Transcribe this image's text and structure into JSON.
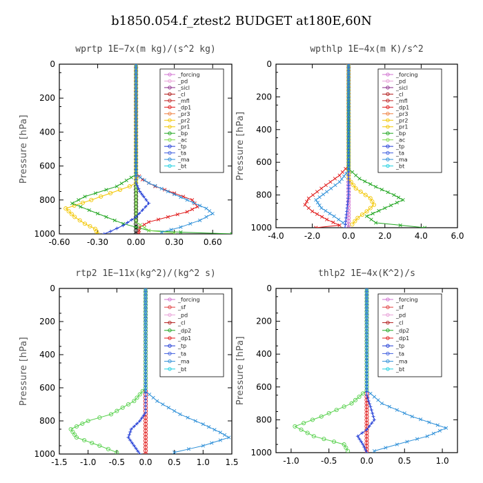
{
  "title": "b1850.054.f_ztest2  BUDGET at180E,60N",
  "chart_data": [
    {
      "type": "line",
      "title": "wprtp   1E−7x(m kg)/(s^2 kg)",
      "ylabel": "Pressure [hPa]",
      "xlim": [
        -0.6,
        0.75
      ],
      "ylim": [
        0,
        1000
      ],
      "y_inverted": true,
      "xticks": [
        "-0.60",
        "-0.30",
        "0.00",
        "0.30",
        "0.60"
      ],
      "xtick_values": [
        -0.6,
        -0.3,
        0.0,
        0.3,
        0.6
      ],
      "yticks": [
        "0",
        "200",
        "400",
        "600",
        "800",
        "1000"
      ],
      "ytick_values": [
        0,
        200,
        400,
        600,
        800,
        1000
      ],
      "legend": [
        "_forcing",
        "_pd",
        "_sicl",
        "_cl",
        "_mfl",
        "_dp1",
        "_pr3",
        "_pr2",
        "_pr1",
        "_bp",
        "_ac",
        "_tp",
        "_ta",
        "_ma",
        "_bt"
      ],
      "series": [
        {
          "name": "_forcing",
          "color": "#000000",
          "marker": "o",
          "points": [
            [
              0,
              0
            ],
            [
              0,
              1000
            ]
          ]
        },
        {
          "name": "_dp1",
          "color": "#e01818",
          "marker": "x",
          "points": [
            [
              0,
              0
            ],
            [
              0,
              640
            ],
            [
              0.05,
              680
            ],
            [
              0.15,
              720
            ],
            [
              0.3,
              760
            ],
            [
              0.44,
              800
            ],
            [
              0.48,
              840
            ],
            [
              0.4,
              870
            ],
            [
              0.25,
              900
            ],
            [
              0.1,
              930
            ],
            [
              0.03,
              960
            ],
            [
              0.02,
              1000
            ]
          ]
        },
        {
          "name": "_pr1",
          "color": "#f2c600",
          "marker": "o",
          "points": [
            [
              0,
              0
            ],
            [
              0,
              700
            ],
            [
              -0.05,
              720
            ],
            [
              -0.2,
              760
            ],
            [
              -0.35,
              800
            ],
            [
              -0.55,
              850
            ],
            [
              -0.48,
              900
            ],
            [
              -0.4,
              940
            ],
            [
              -0.32,
              970
            ],
            [
              -0.3,
              1000
            ]
          ]
        },
        {
          "name": "_bp",
          "color": "#1fa51f",
          "marker": "x",
          "points": [
            [
              0,
              0
            ],
            [
              0,
              650
            ],
            [
              -0.15,
              720
            ],
            [
              -0.4,
              780
            ],
            [
              -0.5,
              820
            ],
            [
              -0.3,
              880
            ],
            [
              -0.1,
              940
            ],
            [
              0.1,
              980
            ],
            [
              0.35,
              990
            ],
            [
              0.75,
              1000
            ]
          ]
        },
        {
          "name": "_ac",
          "color": "#7cd94a",
          "marker": "x",
          "points": [
            [
              0,
              0
            ],
            [
              0,
              930
            ],
            [
              0.1,
              980
            ],
            [
              0.3,
              995
            ]
          ]
        },
        {
          "name": "_tp",
          "color": "#1f3bd6",
          "marker": "+",
          "points": [
            [
              0,
              0
            ],
            [
              0,
              700
            ],
            [
              0.03,
              750
            ],
            [
              0.06,
              780
            ],
            [
              0.1,
              820
            ],
            [
              0.05,
              860
            ],
            [
              0.0,
              900
            ],
            [
              -0.1,
              950
            ],
            [
              -0.2,
              985
            ],
            [
              -0.25,
              1000
            ]
          ]
        },
        {
          "name": "_ma",
          "color": "#2d8fd8",
          "marker": "x",
          "points": [
            [
              0,
              0
            ],
            [
              0,
              650
            ],
            [
              0.1,
              700
            ],
            [
              0.25,
              750
            ],
            [
              0.4,
              800
            ],
            [
              0.55,
              850
            ],
            [
              0.6,
              880
            ],
            [
              0.5,
              920
            ],
            [
              0.35,
              960
            ],
            [
              0.2,
              990
            ]
          ]
        }
      ]
    },
    {
      "type": "line",
      "title": "wpthlp   1E−4x(m K)/s^2",
      "ylabel": "Pressure [hPa]",
      "xlim": [
        -4.0,
        6.0
      ],
      "ylim": [
        0,
        1000
      ],
      "y_inverted": true,
      "xticks": [
        "-4.0",
        "-2.0",
        "0.0",
        "2.0",
        "4.0",
        "6.0"
      ],
      "xtick_values": [
        -4.0,
        -2.0,
        0.0,
        2.0,
        4.0,
        6.0
      ],
      "yticks": [
        "0",
        "200",
        "400",
        "600",
        "800",
        "1000"
      ],
      "ytick_values": [
        0,
        200,
        400,
        600,
        800,
        1000
      ],
      "legend": [
        "_forcing",
        "_pd",
        "_sicl",
        "_cl",
        "_mfl",
        "_dp1",
        "_pr3",
        "_pr2",
        "_pr1",
        "_bp",
        "_ac",
        "_tp",
        "_ta",
        "_ma",
        "_bt"
      ],
      "series": [
        {
          "name": "_forcing",
          "color": "#d070d0",
          "marker": "o",
          "points": [
            [
              0,
              0
            ],
            [
              0,
              1000
            ]
          ]
        },
        {
          "name": "_dp1",
          "color": "#e01818",
          "marker": "x",
          "points": [
            [
              0,
              0
            ],
            [
              0,
              620
            ],
            [
              -0.5,
              680
            ],
            [
              -1.5,
              760
            ],
            [
              -2.2,
              820
            ],
            [
              -2.4,
              860
            ],
            [
              -2.0,
              900
            ],
            [
              -1.2,
              950
            ],
            [
              -0.5,
              985
            ],
            [
              -1.8,
              1000
            ]
          ]
        },
        {
          "name": "_pr1",
          "color": "#f2c600",
          "marker": "o",
          "points": [
            [
              0,
              0
            ],
            [
              0,
              700
            ],
            [
              0.4,
              760
            ],
            [
              1.2,
              820
            ],
            [
              1.4,
              860
            ],
            [
              1.0,
              900
            ],
            [
              0.5,
              940
            ],
            [
              0.2,
              980
            ]
          ]
        },
        {
          "name": "_bp",
          "color": "#1fa51f",
          "marker": "x",
          "points": [
            [
              0,
              0
            ],
            [
              0,
              640
            ],
            [
              0.6,
              700
            ],
            [
              1.5,
              750
            ],
            [
              2.5,
              800
            ],
            [
              3.0,
              830
            ],
            [
              2.0,
              880
            ],
            [
              1.0,
              930
            ],
            [
              1.5,
              970
            ],
            [
              4.2,
              1000
            ]
          ]
        },
        {
          "name": "_tp",
          "color": "#1f3bd6",
          "marker": "+",
          "points": [
            [
              0,
              0
            ],
            [
              0,
              800
            ],
            [
              -0.1,
              900
            ],
            [
              -0.2,
              1000
            ]
          ]
        },
        {
          "name": "_ma",
          "color": "#2d8fd8",
          "marker": "x",
          "points": [
            [
              0,
              0
            ],
            [
              0,
              650
            ],
            [
              -0.5,
              720
            ],
            [
              -1.2,
              780
            ],
            [
              -1.8,
              830
            ],
            [
              -1.5,
              880
            ],
            [
              -0.8,
              930
            ],
            [
              -0.3,
              970
            ]
          ]
        }
      ]
    },
    {
      "type": "line",
      "title": "rtp2   1E−11x(kg^2)/(kg^2 s)",
      "ylabel": "Pressure [hPa]",
      "xlim": [
        -1.5,
        1.5
      ],
      "ylim": [
        0,
        1000
      ],
      "y_inverted": true,
      "xticks": [
        "-1.5",
        "-1.0",
        "-0.5",
        "0.0",
        "0.5",
        "1.0",
        "1.5"
      ],
      "xtick_values": [
        -1.5,
        -1.0,
        -0.5,
        0.0,
        0.5,
        1.0,
        1.5
      ],
      "yticks": [
        "0",
        "200",
        "400",
        "600",
        "800",
        "1000"
      ],
      "ytick_values": [
        0,
        200,
        400,
        600,
        800,
        1000
      ],
      "legend": [
        "_forcing",
        "_sf",
        "_pd",
        "_cl",
        "_dp2",
        "_dp1",
        "_tp",
        "_ta",
        "_ma",
        "_bt"
      ],
      "series": [
        {
          "name": "_forcing",
          "color": "#e01818",
          "marker": "o",
          "points": [
            [
              0,
              0
            ],
            [
              0,
              1000
            ]
          ]
        },
        {
          "name": "_dp1",
          "color": "#55d04a",
          "marker": "o",
          "points": [
            [
              0,
              0
            ],
            [
              0,
              600
            ],
            [
              -0.2,
              680
            ],
            [
              -0.6,
              760
            ],
            [
              -1.0,
              800
            ],
            [
              -1.3,
              850
            ],
            [
              -1.2,
              900
            ],
            [
              -0.8,
              950
            ],
            [
              -0.5,
              990
            ]
          ]
        },
        {
          "name": "_tp",
          "color": "#1f3bd6",
          "marker": "+",
          "points": [
            [
              0,
              0
            ],
            [
              0,
              750
            ],
            [
              -0.1,
              800
            ],
            [
              -0.25,
              850
            ],
            [
              -0.3,
              900
            ],
            [
              -0.2,
              950
            ],
            [
              -0.1,
              1000
            ]
          ]
        },
        {
          "name": "_ma",
          "color": "#2d8fd8",
          "marker": "x",
          "points": [
            [
              0,
              0
            ],
            [
              0,
              620
            ],
            [
              0.2,
              680
            ],
            [
              0.6,
              760
            ],
            [
              1.0,
              820
            ],
            [
              1.3,
              870
            ],
            [
              1.45,
              900
            ],
            [
              1.0,
              950
            ],
            [
              0.5,
              990
            ]
          ]
        }
      ]
    },
    {
      "type": "line",
      "title": "thlp2   1E−4x(K^2)/s",
      "ylabel": "Pressure [hPa]",
      "xlim": [
        -1.2,
        1.2
      ],
      "ylim": [
        0,
        1000
      ],
      "y_inverted": true,
      "xticks": [
        "-1.0",
        "-0.5",
        "0.0",
        "0.5",
        "1.0"
      ],
      "xtick_values": [
        -1.0,
        -0.5,
        0.0,
        0.5,
        1.0
      ],
      "yticks": [
        "0",
        "200",
        "400",
        "600",
        "800",
        "1000"
      ],
      "ytick_values": [
        0,
        200,
        400,
        600,
        800,
        1000
      ],
      "legend": [
        "_forcing",
        "_sf",
        "_pd",
        "_cl",
        "_dp2",
        "_dp1",
        "_tp",
        "_ta",
        "_ma",
        "_bt"
      ],
      "series": [
        {
          "name": "_forcing",
          "color": "#e01818",
          "marker": "o",
          "points": [
            [
              0,
              0
            ],
            [
              0,
              1000
            ]
          ]
        },
        {
          "name": "_dp1",
          "color": "#55d04a",
          "marker": "o",
          "points": [
            [
              0,
              0
            ],
            [
              0,
              620
            ],
            [
              -0.2,
              700
            ],
            [
              -0.6,
              780
            ],
            [
              -0.95,
              840
            ],
            [
              -0.7,
              900
            ],
            [
              -0.3,
              950
            ],
            [
              -0.25,
              990
            ]
          ]
        },
        {
          "name": "_tp",
          "color": "#1f3bd6",
          "marker": "+",
          "points": [
            [
              0,
              0
            ],
            [
              0,
              650
            ],
            [
              0.05,
              720
            ],
            [
              0.1,
              800
            ],
            [
              0.0,
              860
            ],
            [
              -0.12,
              900
            ],
            [
              -0.05,
              950
            ],
            [
              0.0,
              1000
            ]
          ]
        },
        {
          "name": "_ma",
          "color": "#2d8fd8",
          "marker": "x",
          "points": [
            [
              0,
              0
            ],
            [
              0,
              620
            ],
            [
              0.2,
              700
            ],
            [
              0.6,
              780
            ],
            [
              1.05,
              850
            ],
            [
              0.8,
              900
            ],
            [
              0.4,
              950
            ],
            [
              0.1,
              990
            ]
          ]
        }
      ]
    }
  ]
}
